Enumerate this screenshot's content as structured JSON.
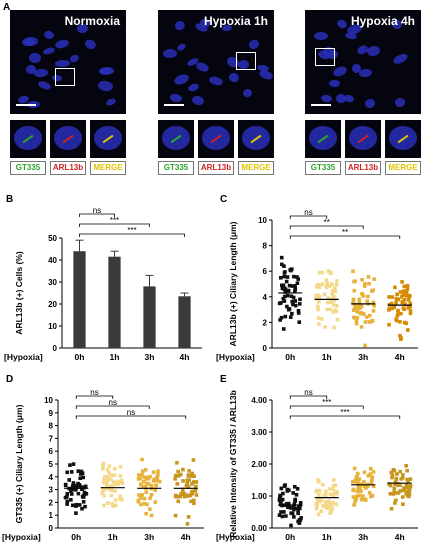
{
  "panel_a": {
    "letter": "A",
    "conditions": [
      "Normoxia",
      "Hypoxia 1h",
      "Hypoxia 4h"
    ],
    "channel_labels": [
      "GT335",
      "ARL13b",
      "MERGE"
    ],
    "channel_colors": [
      "#2aa82a",
      "#cc2222",
      "#e0c400"
    ]
  },
  "chart_data": [
    {
      "panel": "B",
      "type": "bar",
      "categories": [
        "0h",
        "1h",
        "3h",
        "4h"
      ],
      "values": [
        44,
        41.5,
        28,
        23.5
      ],
      "errors": [
        5,
        2.5,
        5,
        1.5
      ],
      "ylabel": "ARL13b (+) Cells (%)",
      "xlabel": "[Hypoxia]",
      "ylim": [
        0,
        50
      ],
      "yticks": [
        "0",
        "10",
        "20",
        "30",
        "40",
        "50"
      ],
      "significance": [
        "ns",
        "***",
        "***"
      ]
    },
    {
      "panel": "C",
      "type": "scatter",
      "categories": [
        "0h",
        "1h",
        "3h",
        "4h"
      ],
      "means": [
        4.3,
        3.8,
        3.45,
        3.35
      ],
      "ylabel": "ARL13b (+) Ciliary Length (μm)",
      "xlabel": "[Hypoxia]",
      "ylim": [
        0,
        10
      ],
      "yticks": [
        "0",
        "2",
        "4",
        "6",
        "8",
        "10"
      ],
      "significance": [
        "ns",
        "**",
        "**"
      ],
      "colors": [
        "#111111",
        "#f5d98a",
        "#e8b23a",
        "#d68a00"
      ]
    },
    {
      "panel": "D",
      "type": "scatter",
      "categories": [
        "0h",
        "1h",
        "3h",
        "4h"
      ],
      "means": [
        3.1,
        3.15,
        3.1,
        3.1
      ],
      "ylabel": "GT335 (+) Ciliary Length (μm)",
      "xlabel": "[Hypoxia]",
      "ylim": [
        0,
        10
      ],
      "yticks": [
        "0",
        "1",
        "2",
        "3",
        "4",
        "5",
        "6",
        "7",
        "8",
        "9",
        "10"
      ],
      "significance": [
        "ns",
        "ns",
        "ns"
      ],
      "colors": [
        "#111111",
        "#f5d98a",
        "#e8b23a",
        "#c7961f"
      ]
    },
    {
      "panel": "E",
      "type": "scatter",
      "categories": [
        "0h",
        "1h",
        "3h",
        "4h"
      ],
      "means": [
        0.72,
        0.95,
        1.35,
        1.4
      ],
      "ylabel": "Relative Intensity of GT335 / ARL13b",
      "xlabel": "[Hypoxia]",
      "ylim": [
        0,
        4
      ],
      "yticks": [
        "0.00",
        "1.00",
        "2.00",
        "3.00",
        "4.00"
      ],
      "significance": [
        "ns",
        "***",
        "***"
      ],
      "colors": [
        "#111111",
        "#f5d98a",
        "#e8b23a",
        "#c7961f"
      ]
    }
  ]
}
